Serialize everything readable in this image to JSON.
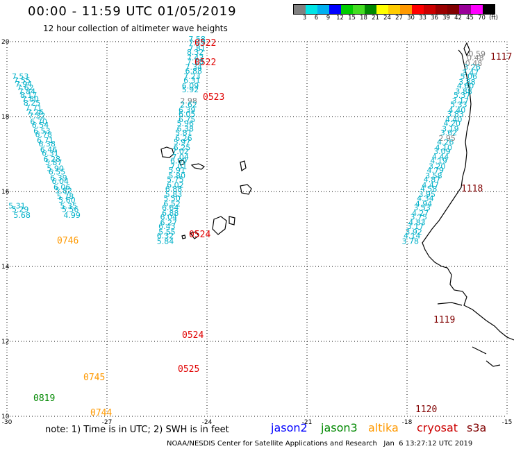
{
  "header": {
    "title": "00:00 - 11:59 UTC 01/05/2019",
    "subtitle": "12 hour collection of altimeter wave heights"
  },
  "colorbar": {
    "colors": [
      "#808080",
      "#00e5e5",
      "#00b0f0",
      "#0000ff",
      "#00cc00",
      "#44dd22",
      "#008800",
      "#ffff00",
      "#ffcc00",
      "#ff9900",
      "#ff0000",
      "#cc0000",
      "#990000",
      "#800000",
      "#990099",
      "#ff00ff",
      "#000000"
    ],
    "labels": [
      "3",
      "6",
      "9",
      "12",
      "15",
      "18",
      "21",
      "24",
      "27",
      "30",
      "33",
      "36",
      "39",
      "42",
      "45",
      "70",
      "(ft)"
    ]
  },
  "axes": {
    "x_ticks": [
      "-30",
      "-27",
      "-24",
      "-21",
      "-18",
      "-15"
    ],
    "y_ticks": [
      "20",
      "18",
      "16",
      "14",
      "12",
      "10"
    ],
    "lon_range": [
      -30,
      -15
    ],
    "lat_range": [
      10,
      20
    ],
    "grid": true
  },
  "legend": {
    "note": "note: 1) Time is in UTC; 2) SWH is in feet",
    "items": [
      {
        "label": "jason2",
        "color": "#0000ff"
      },
      {
        "label": "jason3",
        "color": "#008800"
      },
      {
        "label": "altika",
        "color": "#ff9900"
      },
      {
        "label": "cryosat",
        "color": "#cc0000"
      },
      {
        "label": "s3a",
        "color": "#800000"
      }
    ]
  },
  "credit": "NOAA/NESDIS Center for Satellite Applications and Research   Jan  6 13:27:12 UTC 2019",
  "track_data": [
    {
      "name": "track-west",
      "values": [
        {
          "lon": -29.6,
          "lat": 19.0,
          "v": "7.53",
          "c": "#00b0c8"
        },
        {
          "lon": -29.55,
          "lat": 18.9,
          "v": "7.55",
          "c": "#00b0c8"
        },
        {
          "lon": -29.5,
          "lat": 18.8,
          "v": "7.94",
          "c": "#00b0c8"
        },
        {
          "lon": -29.45,
          "lat": 18.7,
          "v": "7.62",
          "c": "#00b0c8"
        },
        {
          "lon": -29.4,
          "lat": 18.6,
          "v": "7.84",
          "c": "#00b0c8"
        },
        {
          "lon": -29.35,
          "lat": 18.5,
          "v": "8.17",
          "c": "#00b0c8"
        },
        {
          "lon": -29.3,
          "lat": 18.4,
          "v": "7.80",
          "c": "#00b0c8"
        },
        {
          "lon": -29.25,
          "lat": 18.3,
          "v": "8.25",
          "c": "#00b0c8"
        },
        {
          "lon": -29.2,
          "lat": 18.15,
          "v": "7.71",
          "c": "#00b0c8"
        },
        {
          "lon": -29.15,
          "lat": 18.05,
          "v": "7.26",
          "c": "#00b0c8"
        },
        {
          "lon": -29.1,
          "lat": 17.95,
          "v": "7.32",
          "c": "#00b0c8"
        },
        {
          "lon": -29.05,
          "lat": 17.8,
          "v": "6.70",
          "c": "#00b0c8"
        },
        {
          "lon": -29.0,
          "lat": 17.7,
          "v": "6.54",
          "c": "#00b0c8"
        },
        {
          "lon": -28.95,
          "lat": 17.55,
          "v": "6.53",
          "c": "#00b0c8"
        },
        {
          "lon": -28.9,
          "lat": 17.45,
          "v": "6.78",
          "c": "#00b0c8"
        },
        {
          "lon": -28.85,
          "lat": 17.3,
          "v": "6.71",
          "c": "#00b0c8"
        },
        {
          "lon": -28.8,
          "lat": 17.2,
          "v": "6.38",
          "c": "#00b0c8"
        },
        {
          "lon": -28.75,
          "lat": 17.05,
          "v": "6.46",
          "c": "#00b0c8"
        },
        {
          "lon": -28.7,
          "lat": 16.95,
          "v": "6.31",
          "c": "#00b0c8"
        },
        {
          "lon": -28.65,
          "lat": 16.8,
          "v": "6.28",
          "c": "#00b0c8"
        },
        {
          "lon": -28.6,
          "lat": 16.7,
          "v": "5.87",
          "c": "#00b0c8"
        },
        {
          "lon": -28.55,
          "lat": 16.55,
          "v": "5.90",
          "c": "#00b0c8"
        },
        {
          "lon": -28.5,
          "lat": 16.45,
          "v": "6.55",
          "c": "#00b0c8"
        },
        {
          "lon": -28.45,
          "lat": 16.3,
          "v": "6.39",
          "c": "#00b0c8"
        },
        {
          "lon": -28.4,
          "lat": 16.2,
          "v": "6.04",
          "c": "#00b0c8"
        },
        {
          "lon": -28.35,
          "lat": 16.05,
          "v": "6.06",
          "c": "#00b0c8"
        },
        {
          "lon": -28.3,
          "lat": 15.95,
          "v": "5.82",
          "c": "#00b0c8"
        },
        {
          "lon": -28.25,
          "lat": 15.8,
          "v": "5.78",
          "c": "#00b0c8"
        },
        {
          "lon": -28.2,
          "lat": 15.7,
          "v": "5.60",
          "c": "#00b0c8"
        },
        {
          "lon": -28.15,
          "lat": 15.55,
          "v": "5.35",
          "c": "#00b0c8"
        },
        {
          "lon": -28.1,
          "lat": 15.45,
          "v": "5.56",
          "c": "#00b0c8"
        },
        {
          "lon": -28.05,
          "lat": 15.3,
          "v": "4.99",
          "c": "#00b0c8"
        },
        {
          "lon": -29.7,
          "lat": 15.55,
          "v": "5.31",
          "c": "#00b0c8"
        },
        {
          "lon": -29.6,
          "lat": 15.45,
          "v": "5.29",
          "c": "#00b0c8"
        },
        {
          "lon": -29.55,
          "lat": 15.3,
          "v": "5.68",
          "c": "#00b0c8"
        }
      ]
    },
    {
      "name": "track-central",
      "values": [
        {
          "lon": -24.3,
          "lat": 20.0,
          "v": "7.58",
          "c": "#00b0c8"
        },
        {
          "lon": -24.3,
          "lat": 19.9,
          "v": "7.49",
          "c": "#00b0c8"
        },
        {
          "lon": -24.3,
          "lat": 19.75,
          "v": "7.81",
          "c": "#00b0c8"
        },
        {
          "lon": -24.35,
          "lat": 19.65,
          "v": "8.32",
          "c": "#00b0c8"
        },
        {
          "lon": -24.35,
          "lat": 19.5,
          "v": "7.43",
          "c": "#00b0c8"
        },
        {
          "lon": -24.35,
          "lat": 19.4,
          "v": "7.18",
          "c": "#00b0c8"
        },
        {
          "lon": -24.4,
          "lat": 19.25,
          "v": "7.34",
          "c": "#00b0c8"
        },
        {
          "lon": -24.4,
          "lat": 19.15,
          "v": "6.88",
          "c": "#00b0c8"
        },
        {
          "lon": -24.45,
          "lat": 19.0,
          "v": "7.23",
          "c": "#00b0c8"
        },
        {
          "lon": -24.45,
          "lat": 18.9,
          "v": "6.31",
          "c": "#00b0c8"
        },
        {
          "lon": -24.5,
          "lat": 18.75,
          "v": "6.09",
          "c": "#00b0c8"
        },
        {
          "lon": -24.5,
          "lat": 18.65,
          "v": "5.92",
          "c": "#00b0c8"
        },
        {
          "lon": -24.55,
          "lat": 18.35,
          "v": "2.98",
          "c": "#808080"
        },
        {
          "lon": -24.55,
          "lat": 18.25,
          "v": "2.62",
          "c": "#00b0c8"
        },
        {
          "lon": -24.6,
          "lat": 18.1,
          "v": "6.39",
          "c": "#00b0c8"
        },
        {
          "lon": -24.6,
          "lat": 18.0,
          "v": "6.05",
          "c": "#00b0c8"
        },
        {
          "lon": -24.6,
          "lat": 17.85,
          "v": "6.75",
          "c": "#00b0c8"
        },
        {
          "lon": -24.65,
          "lat": 17.75,
          "v": "5.96",
          "c": "#00b0c8"
        },
        {
          "lon": -24.65,
          "lat": 17.6,
          "v": "6.38",
          "c": "#00b0c8"
        },
        {
          "lon": -24.7,
          "lat": 17.5,
          "v": "5.81",
          "c": "#00b0c8"
        },
        {
          "lon": -24.7,
          "lat": 17.35,
          "v": "6.26",
          "c": "#00b0c8"
        },
        {
          "lon": -24.75,
          "lat": 17.25,
          "v": "5.97",
          "c": "#00b0c8"
        },
        {
          "lon": -24.75,
          "lat": 17.1,
          "v": "6.25",
          "c": "#00b0c8"
        },
        {
          "lon": -24.8,
          "lat": 17.0,
          "v": "7.02",
          "c": "#00b0c8"
        },
        {
          "lon": -24.8,
          "lat": 16.85,
          "v": "7.04",
          "c": "#00b0c8"
        },
        {
          "lon": -24.85,
          "lat": 16.75,
          "v": "6.09",
          "c": "#00b0c8"
        },
        {
          "lon": -24.85,
          "lat": 16.6,
          "v": "7.01",
          "c": "#00b0c8"
        },
        {
          "lon": -24.9,
          "lat": 16.5,
          "v": "5.91",
          "c": "#00b0c8"
        },
        {
          "lon": -24.9,
          "lat": 16.35,
          "v": "5.80",
          "c": "#00b0c8"
        },
        {
          "lon": -24.95,
          "lat": 16.25,
          "v": "5.75",
          "c": "#00b0c8"
        },
        {
          "lon": -24.95,
          "lat": 16.1,
          "v": "6.02",
          "c": "#00b0c8"
        },
        {
          "lon": -25.0,
          "lat": 16.0,
          "v": "6.88",
          "c": "#00b0c8"
        },
        {
          "lon": -25.0,
          "lat": 15.85,
          "v": "5.83",
          "c": "#00b0c8"
        },
        {
          "lon": -25.05,
          "lat": 15.75,
          "v": "5.50",
          "c": "#00b0c8"
        },
        {
          "lon": -25.05,
          "lat": 15.6,
          "v": "6.52",
          "c": "#00b0c8"
        },
        {
          "lon": -25.1,
          "lat": 15.5,
          "v": "6.64",
          "c": "#00b0c8"
        },
        {
          "lon": -25.1,
          "lat": 15.35,
          "v": "6.88",
          "c": "#00b0c8"
        },
        {
          "lon": -25.15,
          "lat": 15.25,
          "v": "6.04",
          "c": "#00b0c8"
        },
        {
          "lon": -25.15,
          "lat": 15.1,
          "v": "6.27",
          "c": "#00b0c8"
        },
        {
          "lon": -25.2,
          "lat": 15.0,
          "v": "6.43",
          "c": "#00b0c8"
        },
        {
          "lon": -25.2,
          "lat": 14.85,
          "v": "5.55",
          "c": "#00b0c8"
        },
        {
          "lon": -25.25,
          "lat": 14.75,
          "v": "6.32",
          "c": "#00b0c8"
        },
        {
          "lon": -25.25,
          "lat": 14.6,
          "v": "5.84",
          "c": "#00b0c8"
        }
      ]
    },
    {
      "name": "track-east",
      "values": [
        {
          "lon": -15.9,
          "lat": 19.6,
          "v": "0.59",
          "c": "#808080"
        },
        {
          "lon": -15.95,
          "lat": 19.5,
          "v": "0.48",
          "c": "#808080"
        },
        {
          "lon": -16.0,
          "lat": 19.35,
          "v": "0.48",
          "c": "#808080"
        },
        {
          "lon": -16.05,
          "lat": 19.25,
          "v": "3.26",
          "c": "#00b0c8"
        },
        {
          "lon": -16.1,
          "lat": 19.1,
          "v": "3.47",
          "c": "#00b0c8"
        },
        {
          "lon": -16.15,
          "lat": 19.0,
          "v": "5.06",
          "c": "#00b0c8"
        },
        {
          "lon": -16.2,
          "lat": 18.85,
          "v": "3.88",
          "c": "#00b0c8"
        },
        {
          "lon": -16.25,
          "lat": 18.75,
          "v": "4.60",
          "c": "#00b0c8"
        },
        {
          "lon": -16.3,
          "lat": 18.6,
          "v": "3.88",
          "c": "#00b0c8"
        },
        {
          "lon": -16.35,
          "lat": 18.5,
          "v": "5.37",
          "c": "#00b0c8"
        },
        {
          "lon": -16.4,
          "lat": 18.35,
          "v": "3.17",
          "c": "#00b0c8"
        },
        {
          "lon": -16.45,
          "lat": 18.25,
          "v": "5.33",
          "c": "#00b0c8"
        },
        {
          "lon": -16.5,
          "lat": 18.1,
          "v": "4.40",
          "c": "#00b0c8"
        },
        {
          "lon": -16.55,
          "lat": 18.0,
          "v": "3.83",
          "c": "#00b0c8"
        },
        {
          "lon": -16.6,
          "lat": 17.85,
          "v": "4.40",
          "c": "#00b0c8"
        },
        {
          "lon": -16.65,
          "lat": 17.75,
          "v": "4.20",
          "c": "#00b0c8"
        },
        {
          "lon": -16.7,
          "lat": 17.6,
          "v": "3.19",
          "c": "#00b0c8"
        },
        {
          "lon": -16.75,
          "lat": 17.5,
          "v": "3.62",
          "c": "#00b0c8"
        },
        {
          "lon": -16.8,
          "lat": 17.35,
          "v": "2.95",
          "c": "#808080"
        },
        {
          "lon": -16.85,
          "lat": 17.25,
          "v": "4.26",
          "c": "#00b0c8"
        },
        {
          "lon": -16.9,
          "lat": 17.1,
          "v": "4.10",
          "c": "#00b0c8"
        },
        {
          "lon": -16.95,
          "lat": 17.0,
          "v": "3.09",
          "c": "#00b0c8"
        },
        {
          "lon": -17.0,
          "lat": 16.85,
          "v": "4.44",
          "c": "#00b0c8"
        },
        {
          "lon": -17.05,
          "lat": 16.75,
          "v": "4.19",
          "c": "#00b0c8"
        },
        {
          "lon": -17.1,
          "lat": 16.6,
          "v": "3.20",
          "c": "#00b0c8"
        },
        {
          "lon": -17.15,
          "lat": 16.5,
          "v": "4.79",
          "c": "#00b0c8"
        },
        {
          "lon": -17.2,
          "lat": 16.35,
          "v": "3.58",
          "c": "#00b0c8"
        },
        {
          "lon": -17.25,
          "lat": 16.25,
          "v": "4.87",
          "c": "#00b0c8"
        },
        {
          "lon": -17.3,
          "lat": 16.1,
          "v": "4.47",
          "c": "#00b0c8"
        },
        {
          "lon": -17.35,
          "lat": 16.0,
          "v": "4.58",
          "c": "#00b0c8"
        },
        {
          "lon": -17.4,
          "lat": 15.85,
          "v": "3.95",
          "c": "#00b0c8"
        },
        {
          "lon": -17.45,
          "lat": 15.75,
          "v": "4.34",
          "c": "#00b0c8"
        },
        {
          "lon": -17.5,
          "lat": 15.6,
          "v": "4.94",
          "c": "#00b0c8"
        },
        {
          "lon": -17.55,
          "lat": 15.5,
          "v": "3.53",
          "c": "#00b0c8"
        },
        {
          "lon": -17.6,
          "lat": 15.35,
          "v": "4.27",
          "c": "#00b0c8"
        },
        {
          "lon": -17.65,
          "lat": 15.25,
          "v": "3.75",
          "c": "#00b0c8"
        },
        {
          "lon": -17.7,
          "lat": 15.1,
          "v": "4.83",
          "c": "#00b0c8"
        },
        {
          "lon": -17.75,
          "lat": 15.0,
          "v": "3.17",
          "c": "#00b0c8"
        },
        {
          "lon": -17.8,
          "lat": 14.85,
          "v": "3.92",
          "c": "#00b0c8"
        },
        {
          "lon": -17.85,
          "lat": 14.75,
          "v": "4.14",
          "c": "#00b0c8"
        },
        {
          "lon": -17.9,
          "lat": 14.6,
          "v": "3.78",
          "c": "#00b0c8"
        }
      ]
    }
  ],
  "time_labels": [
    {
      "text": "0522",
      "c": "#e00000"
    },
    {
      "text": "0522",
      "c": "#e00000"
    },
    {
      "text": "0523",
      "c": "#e00000"
    },
    {
      "text": "0524",
      "c": "#e00000"
    },
    {
      "text": "0524",
      "c": "#e00000"
    },
    {
      "text": "0525",
      "c": "#e00000"
    },
    {
      "text": "0746",
      "c": "#ff9900"
    },
    {
      "text": "0745",
      "c": "#ff9900"
    },
    {
      "text": "0744",
      "c": "#ff9900"
    },
    {
      "text": "0819",
      "c": "#008800"
    },
    {
      "text": "1117",
      "c": "#800000"
    },
    {
      "text": "1118",
      "c": "#800000"
    },
    {
      "text": "1119",
      "c": "#800000"
    },
    {
      "text": "1120",
      "c": "#800000"
    }
  ]
}
